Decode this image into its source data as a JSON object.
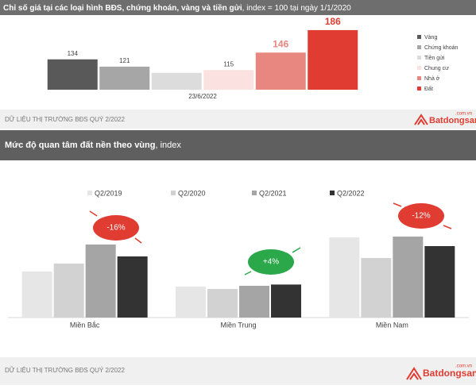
{
  "chart_data": [
    {
      "type": "bar",
      "title": "Chỉ số giá tại các loại hình BĐS, chứng khoán, vàng và tiền gửi",
      "subtitle": ", index = 100 tại ngày 1/1/2020",
      "categories": [
        "23/6/2022"
      ],
      "series": [
        {
          "name": "Vàng",
          "color": "#595959",
          "values": [
            134
          ],
          "value_labels": [
            "134"
          ]
        },
        {
          "name": "Chứng khoán",
          "color": "#a6a6a6",
          "values": [
            121
          ],
          "value_labels": [
            "121"
          ]
        },
        {
          "name": "Tiền gửi",
          "color": "#dcdcdc",
          "values": [
            110
          ],
          "value_labels": [
            null
          ]
        },
        {
          "name": "Chung cư",
          "color": "#fbe2e0",
          "values": [
            115
          ],
          "value_labels": [
            "115"
          ]
        },
        {
          "name": "Nhà ở",
          "color": "#e8877f",
          "values": [
            146
          ],
          "value_labels": [
            "146"
          ]
        },
        {
          "name": "Đất",
          "color": "#e03c31",
          "values": [
            186
          ],
          "value_labels": [
            "186"
          ]
        }
      ],
      "ylim": [
        80,
        200
      ],
      "legend": "right"
    },
    {
      "type": "bar",
      "title": "Mức độ quan tâm đất nền theo vùng",
      "subtitle": ", index",
      "categories": [
        "Miền Bắc",
        "Miền Trung",
        "Miền Nam"
      ],
      "series": [
        {
          "name": "Q2/2019",
          "color": "#e6e6e6",
          "values": [
            58,
            39,
            101
          ]
        },
        {
          "name": "Q2/2020",
          "color": "#d2d2d2",
          "values": [
            68,
            36,
            75
          ]
        },
        {
          "name": "Q2/2021",
          "color": "#a5a5a5",
          "values": [
            92,
            40,
            102
          ]
        },
        {
          "name": "Q2/2022",
          "color": "#333333",
          "values": [
            77,
            41.6,
            90
          ]
        }
      ],
      "annotations": [
        {
          "label": "-16%",
          "color": "#e03c31"
        },
        {
          "label": "+4%",
          "color": "#2aa84a"
        },
        {
          "label": "-12%",
          "color": "#e03c31"
        }
      ],
      "ylim": [
        0,
        170
      ],
      "legend": "top"
    }
  ],
  "footers": [
    {
      "text": "DỮ LIỆU THỊ TRƯỜNG BĐS QUÝ 2/2022",
      "brand": "Batdongsan",
      "domain": ".com.vn"
    },
    {
      "text": "DỮ LIỆU THỊ TRƯỜNG BĐS QUÝ 2/2022",
      "brand": "Batdongsan",
      "domain": ".com.vn"
    }
  ]
}
